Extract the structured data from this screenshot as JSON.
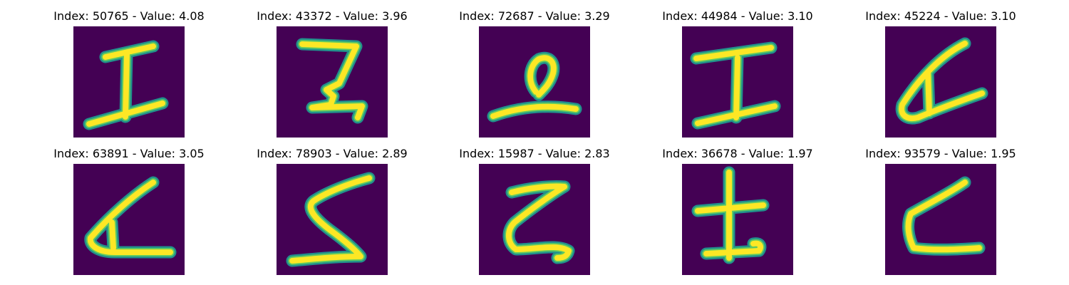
{
  "figure": {
    "colors": {
      "background": "#440154",
      "stroke_core": "#fde725",
      "stroke_mid": "#5ec962",
      "stroke_edge": "#21918c"
    },
    "panels": [
      {
        "title": "Index: 50765 - Value: 4.08",
        "glyph": "digit-i-icon"
      },
      {
        "title": "Index: 43372 - Value: 3.96",
        "glyph": "digit-z-icon"
      },
      {
        "title": "Index: 72687 - Value: 3.29",
        "glyph": "digit-2-loop-icon"
      },
      {
        "title": "Index: 44984 - Value: 3.10",
        "glyph": "digit-i-icon"
      },
      {
        "title": "Index: 45224 - Value: 3.10",
        "glyph": "digit-a-icon"
      },
      {
        "title": "Index: 63891 - Value: 3.05",
        "glyph": "digit-a-icon"
      },
      {
        "title": "Index: 78903 - Value: 2.89",
        "glyph": "digit-s-icon"
      },
      {
        "title": "Index: 15987 - Value: 2.83",
        "glyph": "digit-z-icon"
      },
      {
        "title": "Index: 36678 - Value: 1.97",
        "glyph": "digit-cross-icon"
      },
      {
        "title": "Index: 93579 - Value: 1.95",
        "glyph": "digit-l-icon"
      }
    ]
  }
}
